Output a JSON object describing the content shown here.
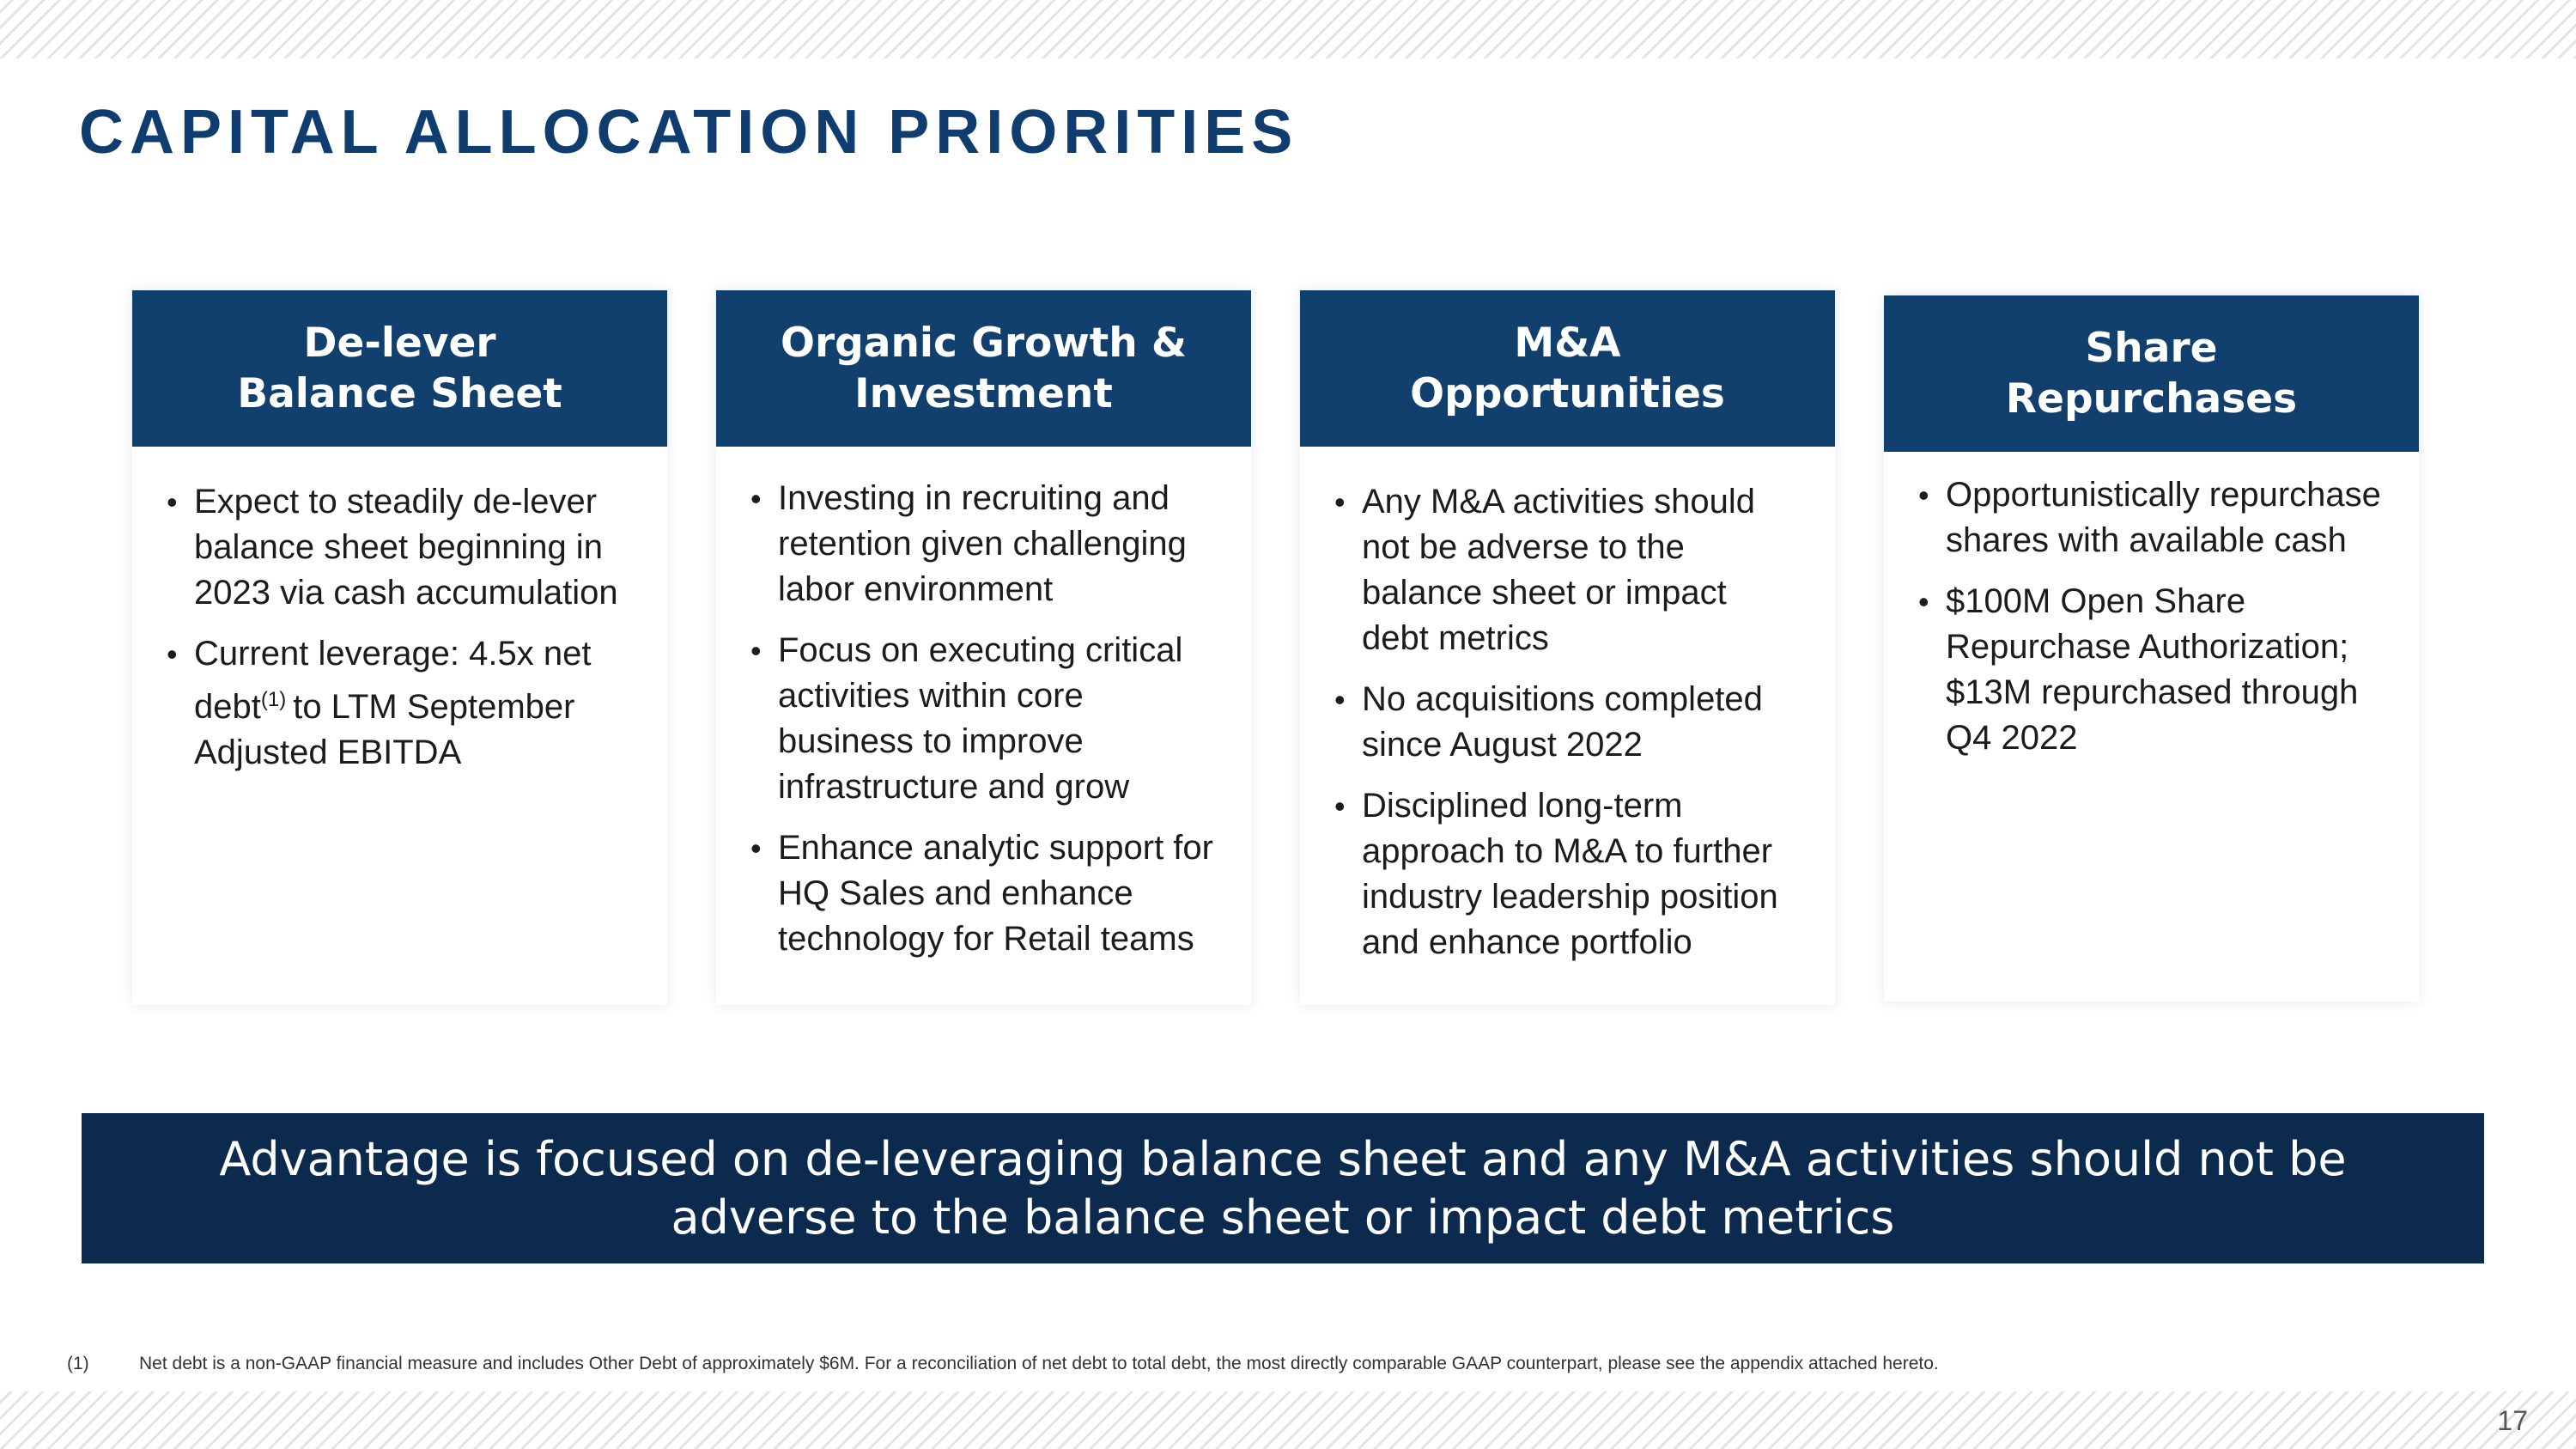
{
  "page": {
    "title": "CAPITAL ALLOCATION PRIORITIES",
    "number": "17"
  },
  "cards": [
    {
      "header_lines": [
        "De-lever",
        "Balance Sheet"
      ],
      "bullets": [
        {
          "text": "Expect to steadily de-lever balance sheet beginning in 2023 via cash accumulation"
        },
        {
          "text_before": "Current leverage: 4.5x net debt",
          "sup": "(1)",
          "text_after": "to LTM September Adjusted EBITDA"
        }
      ]
    },
    {
      "header_lines": [
        "Organic Growth &",
        "Investment"
      ],
      "bullets": [
        {
          "text": "Investing in recruiting and retention given challenging labor environment"
        },
        {
          "text": "Focus on executing critical activities within core business to improve infrastructure and grow"
        },
        {
          "text": "Enhance analytic support for HQ Sales and enhance technology for Retail teams"
        }
      ]
    },
    {
      "header_lines": [
        "M&A",
        "Opportunities"
      ],
      "bullets": [
        {
          "text": "Any M&A activities should not be adverse to the balance sheet or impact debt metrics"
        },
        {
          "text": "No acquisitions completed since August 2022"
        },
        {
          "text": "Disciplined long-term approach to M&A to further industry leadership position and enhance portfolio"
        }
      ]
    },
    {
      "header_lines": [
        "Share",
        "Repurchases"
      ],
      "bullets": [
        {
          "text": "Opportunistically repurchase shares with available cash"
        },
        {
          "text": "$100M Open Share Repurchase Authorization; $13M repurchased through Q4 2022"
        }
      ]
    }
  ],
  "banner": {
    "text": "Advantage is focused on de-leveraging balance sheet and any M&A activities should not be adverse to the balance sheet or impact debt metrics"
  },
  "footnote": {
    "marker": "(1)",
    "text": "Net debt is a non-GAAP financial measure and includes Other Debt of approximately $6M. For a reconciliation of net debt to total debt, the most directly comparable GAAP counterpart, please see the appendix attached hereto."
  },
  "bullet_glyph": "•",
  "colors": {
    "title": "#0f3d70",
    "card_header": "#11406f",
    "banner": "#0c2a4d"
  }
}
